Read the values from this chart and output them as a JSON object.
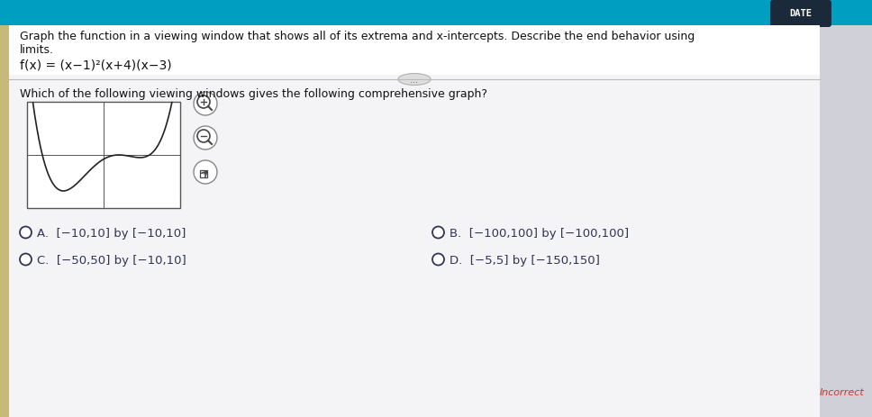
{
  "title_line1": "Graph the function in a viewing window that shows all of its extrema and x-intercepts. Describe the end behavior using",
  "title_line2": "limits.",
  "function_text": "f(x) = (x−1)²(x+4)(x−3)",
  "question_text": "Which of the following viewing windows gives the following comprehensive graph?",
  "opt_A": "[−10,10] by [−10,10]",
  "opt_B": "[−100,100] by [−100,100]",
  "opt_C": "[−50,50] by [−10,10]",
  "opt_D": "[−5,5] by [−150,150]",
  "bg_color": "#e8eaec",
  "content_color": "#f4f4f6",
  "white_color": "#ffffff",
  "header_bar_color": "#009ec0",
  "badge_color": "#1a2a3a",
  "text_color": "#111111",
  "option_text_color": "#333355",
  "separator_color": "#bbbbbb",
  "curve_color": "#222222",
  "axis_color": "#555555",
  "graph_border_color": "#555555",
  "incorrect_color": "#cc3333",
  "plot_xlim": [
    -5,
    5
  ],
  "plot_ylim": [
    -150,
    150
  ]
}
